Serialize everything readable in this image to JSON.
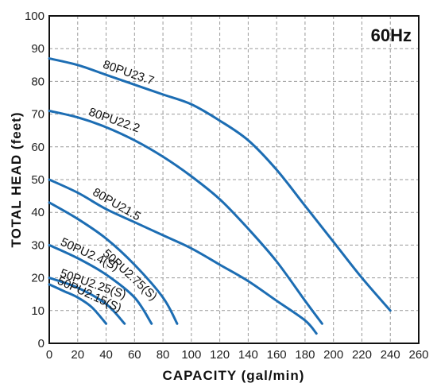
{
  "chart_data": {
    "type": "line",
    "title": "60Hz",
    "xlabel": "CAPACITY (gal/min)",
    "ylabel": "TOTAL HEAD (feet)",
    "xlim": [
      0,
      260
    ],
    "ylim": [
      0,
      100
    ],
    "xticks": [
      0,
      20,
      40,
      60,
      80,
      100,
      120,
      140,
      160,
      180,
      200,
      220,
      240,
      260
    ],
    "yticks": [
      0,
      10,
      20,
      30,
      40,
      50,
      60,
      70,
      80,
      90,
      100
    ],
    "grid": true,
    "line_color": "#1c6db3",
    "series": [
      {
        "name": "80PU23.7",
        "x": [
          0,
          20,
          40,
          60,
          80,
          100,
          120,
          140,
          160,
          180,
          200,
          220,
          240
        ],
        "y": [
          87,
          85,
          82,
          79,
          76,
          73,
          68,
          62,
          53,
          42,
          31,
          20,
          10
        ]
      },
      {
        "name": "80PU22.2",
        "x": [
          0,
          20,
          40,
          60,
          80,
          100,
          120,
          140,
          160,
          180,
          192
        ],
        "y": [
          71,
          69,
          66,
          62,
          57,
          51,
          44,
          35,
          25,
          13,
          6
        ]
      },
      {
        "name": "80PU21.5",
        "x": [
          0,
          20,
          40,
          60,
          80,
          100,
          120,
          140,
          160,
          180,
          188
        ],
        "y": [
          50,
          46,
          41,
          37,
          33,
          29,
          24,
          19,
          13,
          7,
          3
        ]
      },
      {
        "name": "50PU2.75(S)",
        "x": [
          0,
          20,
          40,
          60,
          80,
          90
        ],
        "y": [
          43,
          38,
          32,
          24,
          14,
          6
        ]
      },
      {
        "name": "50PU2.4(S)",
        "x": [
          0,
          20,
          40,
          60,
          72
        ],
        "y": [
          30,
          26,
          21,
          14,
          6
        ]
      },
      {
        "name": "50PU2.25(S)",
        "x": [
          0,
          20,
          40,
          53
        ],
        "y": [
          20,
          17,
          12,
          6
        ]
      },
      {
        "name": "50PU2.15(S)",
        "x": [
          0,
          10,
          20,
          30,
          40
        ],
        "y": [
          18,
          16,
          14,
          11,
          6
        ]
      }
    ]
  }
}
